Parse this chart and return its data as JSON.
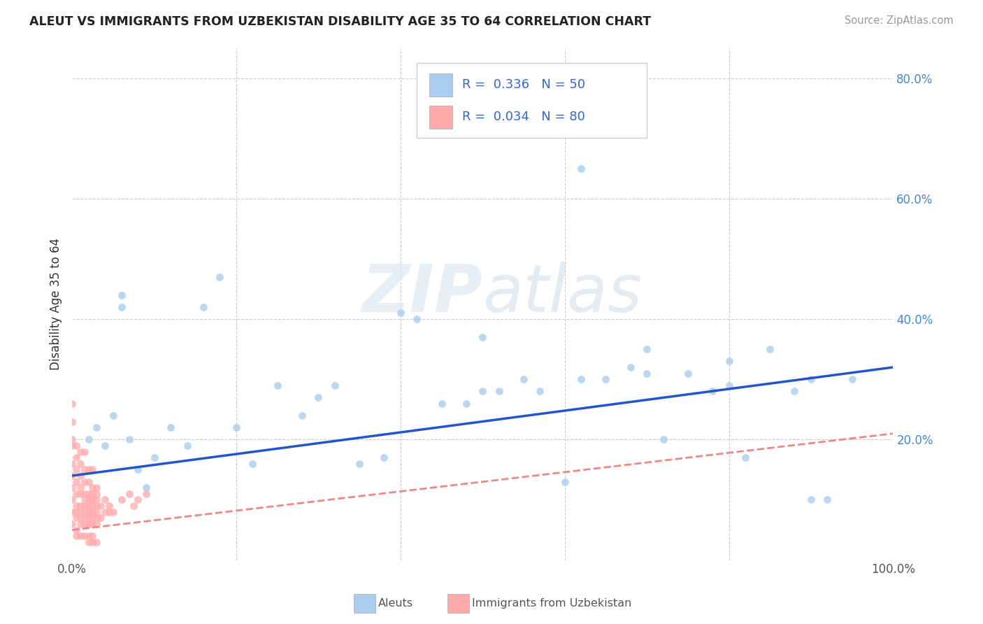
{
  "title": "ALEUT VS IMMIGRANTS FROM UZBEKISTAN DISABILITY AGE 35 TO 64 CORRELATION CHART",
  "source": "Source: ZipAtlas.com",
  "xlabel": "",
  "ylabel": "Disability Age 35 to 64",
  "xlim": [
    0,
    1.0
  ],
  "ylim": [
    0,
    0.85
  ],
  "grid_color": "#cccccc",
  "background_color": "#ffffff",
  "watermark": "ZIPatlas",
  "legend_R1": "0.336",
  "legend_N1": "50",
  "legend_R2": "0.034",
  "legend_N2": "80",
  "aleut_color": "#aaccee",
  "uzbek_color": "#ffaaaa",
  "line_aleut_color": "#2255cc",
  "line_uzbek_color": "#ee8888",
  "aleut_line_start": 0.14,
  "aleut_line_end": 0.32,
  "uzbek_line_start": 0.05,
  "uzbek_line_end": 0.21,
  "aleut_x": [
    0.02,
    0.03,
    0.04,
    0.05,
    0.06,
    0.06,
    0.07,
    0.08,
    0.09,
    0.1,
    0.12,
    0.14,
    0.16,
    0.18,
    0.2,
    0.22,
    0.25,
    0.28,
    0.3,
    0.32,
    0.35,
    0.38,
    0.4,
    0.42,
    0.45,
    0.48,
    0.5,
    0.52,
    0.55,
    0.57,
    0.6,
    0.62,
    0.65,
    0.68,
    0.7,
    0.72,
    0.75,
    0.78,
    0.8,
    0.82,
    0.85,
    0.88,
    0.9,
    0.92,
    0.95,
    0.62,
    0.7,
    0.8,
    0.9,
    0.5
  ],
  "aleut_y": [
    0.2,
    0.22,
    0.19,
    0.24,
    0.42,
    0.44,
    0.2,
    0.15,
    0.12,
    0.17,
    0.22,
    0.19,
    0.42,
    0.47,
    0.22,
    0.16,
    0.29,
    0.24,
    0.27,
    0.29,
    0.16,
    0.17,
    0.41,
    0.4,
    0.26,
    0.26,
    0.28,
    0.28,
    0.3,
    0.28,
    0.13,
    0.3,
    0.3,
    0.32,
    0.35,
    0.2,
    0.31,
    0.28,
    0.33,
    0.17,
    0.35,
    0.28,
    0.1,
    0.1,
    0.3,
    0.65,
    0.31,
    0.29,
    0.3,
    0.37
  ],
  "uzbek_x": [
    0.0,
    0.0,
    0.0,
    0.0,
    0.0,
    0.0,
    0.0,
    0.0,
    0.0,
    0.0,
    0.005,
    0.005,
    0.005,
    0.005,
    0.005,
    0.005,
    0.005,
    0.005,
    0.005,
    0.005,
    0.01,
    0.01,
    0.01,
    0.01,
    0.01,
    0.01,
    0.01,
    0.01,
    0.01,
    0.01,
    0.015,
    0.015,
    0.015,
    0.015,
    0.015,
    0.015,
    0.015,
    0.015,
    0.015,
    0.015,
    0.02,
    0.02,
    0.02,
    0.02,
    0.02,
    0.02,
    0.02,
    0.02,
    0.02,
    0.02,
    0.025,
    0.025,
    0.025,
    0.025,
    0.025,
    0.025,
    0.025,
    0.025,
    0.025,
    0.025,
    0.03,
    0.03,
    0.03,
    0.03,
    0.03,
    0.03,
    0.03,
    0.03,
    0.035,
    0.035,
    0.04,
    0.04,
    0.045,
    0.045,
    0.05,
    0.06,
    0.07,
    0.075,
    0.08,
    0.09
  ],
  "uzbek_y": [
    0.1,
    0.12,
    0.14,
    0.08,
    0.06,
    0.16,
    0.2,
    0.19,
    0.23,
    0.26,
    0.09,
    0.11,
    0.13,
    0.07,
    0.05,
    0.08,
    0.15,
    0.17,
    0.19,
    0.04,
    0.09,
    0.11,
    0.08,
    0.06,
    0.07,
    0.12,
    0.14,
    0.16,
    0.18,
    0.04,
    0.08,
    0.1,
    0.07,
    0.06,
    0.09,
    0.11,
    0.13,
    0.15,
    0.18,
    0.04,
    0.09,
    0.1,
    0.07,
    0.06,
    0.08,
    0.11,
    0.13,
    0.15,
    0.04,
    0.03,
    0.09,
    0.1,
    0.07,
    0.06,
    0.08,
    0.11,
    0.12,
    0.15,
    0.04,
    0.03,
    0.09,
    0.1,
    0.07,
    0.06,
    0.08,
    0.11,
    0.12,
    0.03,
    0.09,
    0.07,
    0.08,
    0.1,
    0.09,
    0.08,
    0.08,
    0.1,
    0.11,
    0.09,
    0.1,
    0.11
  ]
}
